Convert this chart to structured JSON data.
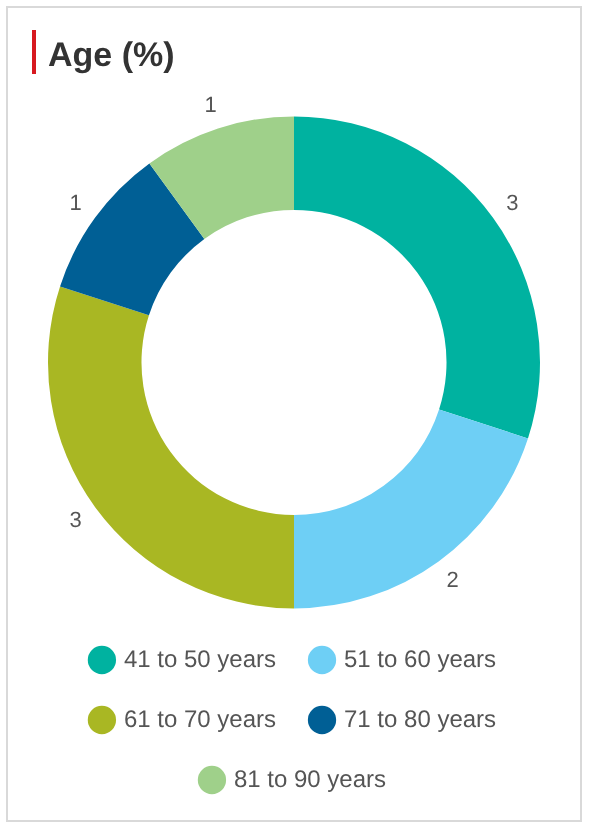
{
  "chart_data": {
    "type": "donut",
    "title": "Age (%)",
    "categories": [
      "41 to 50 years",
      "51 to 60 years",
      "61 to 70 years",
      "71 to 80 years",
      "81 to 90 years"
    ],
    "values": [
      3,
      2,
      3,
      1,
      1
    ],
    "colors": [
      "#00b2a0",
      "#6ecff5",
      "#a9b723",
      "#005f95",
      "#9fd08a"
    ],
    "data_labels": true,
    "legend": "bottom"
  }
}
